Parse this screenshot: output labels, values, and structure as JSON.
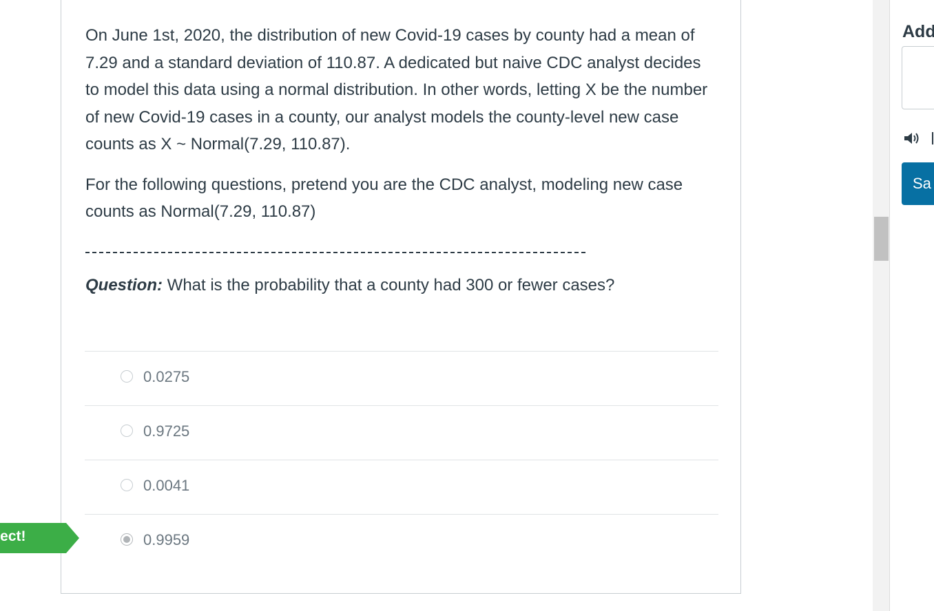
{
  "question": {
    "paragraph_1": "On June 1st, 2020, the distribution of new Covid-19 cases by county had a mean of 7.29 and a standard deviation of 110.87.   A dedicated but naive CDC analyst decides to model this data using a normal distribution.  In other words, letting X be the number of new Covid-19 cases in a county, our analyst models the county-level new case counts as  X ~ Normal(7.29, 110.87).",
    "paragraph_2": "For the following questions, pretend you are the CDC analyst, modeling new case counts as Normal(7.29, 110.87)",
    "prompt_label": "Question:",
    "prompt_text": " What is the probability that a county had 300 or fewer cases?"
  },
  "answers": [
    {
      "label": "0.0275",
      "selected": false
    },
    {
      "label": "0.9725",
      "selected": false
    },
    {
      "label": "0.0041",
      "selected": false
    },
    {
      "label": "0.9959",
      "selected": true
    }
  ],
  "result_flag": {
    "label": "rect!",
    "color": "#3cae47"
  },
  "sidebar": {
    "heading": "Add",
    "save_label": "Sa",
    "speaker_icon": "speaker-icon",
    "accent_color": "#0770a3"
  }
}
